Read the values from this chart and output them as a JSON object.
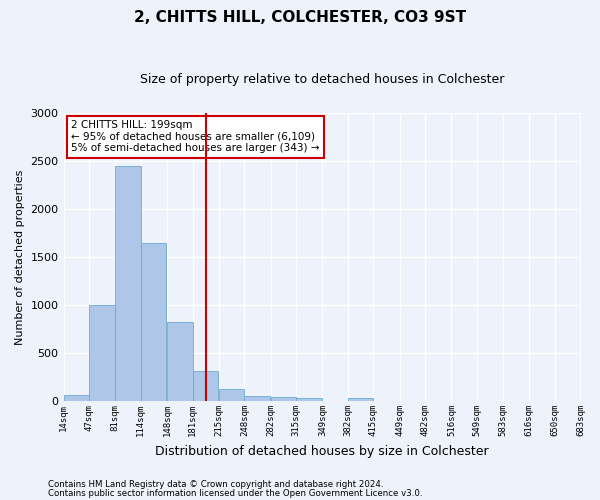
{
  "title": "2, CHITTS HILL, COLCHESTER, CO3 9ST",
  "subtitle": "Size of property relative to detached houses in Colchester",
  "xlabel": "Distribution of detached houses by size in Colchester",
  "ylabel": "Number of detached properties",
  "bar_values": [
    60,
    1000,
    2450,
    1650,
    820,
    310,
    130,
    55,
    45,
    35,
    0,
    30,
    0,
    0,
    0,
    0,
    0,
    0,
    0,
    0
  ],
  "bin_edges": [
    14,
    47,
    81,
    114,
    148,
    181,
    215,
    248,
    282,
    315,
    349,
    382,
    415,
    449,
    482,
    516,
    549,
    583,
    616,
    650,
    683
  ],
  "tick_labels": [
    "14sqm",
    "47sqm",
    "81sqm",
    "114sqm",
    "148sqm",
    "181sqm",
    "215sqm",
    "248sqm",
    "282sqm",
    "315sqm",
    "349sqm",
    "382sqm",
    "415sqm",
    "449sqm",
    "482sqm",
    "516sqm",
    "549sqm",
    "583sqm",
    "616sqm",
    "650sqm",
    "683sqm"
  ],
  "bar_color": "#aec6e8",
  "bar_edgecolor": "#6aaad4",
  "vline_x": 199,
  "vline_color": "#cc0000",
  "ylim": [
    0,
    3000
  ],
  "yticks": [
    0,
    500,
    1000,
    1500,
    2000,
    2500,
    3000
  ],
  "annotation_text": "2 CHITTS HILL: 199sqm\n← 95% of detached houses are smaller (6,109)\n5% of semi-detached houses are larger (343) →",
  "annotation_box_color": "#ffffff",
  "annotation_box_edgecolor": "#cc0000",
  "footer_line1": "Contains HM Land Registry data © Crown copyright and database right 2024.",
  "footer_line2": "Contains public sector information licensed under the Open Government Licence v3.0.",
  "background_color": "#eef2fb",
  "grid_color": "#ffffff",
  "title_fontsize": 11,
  "subtitle_fontsize": 9,
  "ylabel_fontsize": 8,
  "xlabel_fontsize": 9
}
